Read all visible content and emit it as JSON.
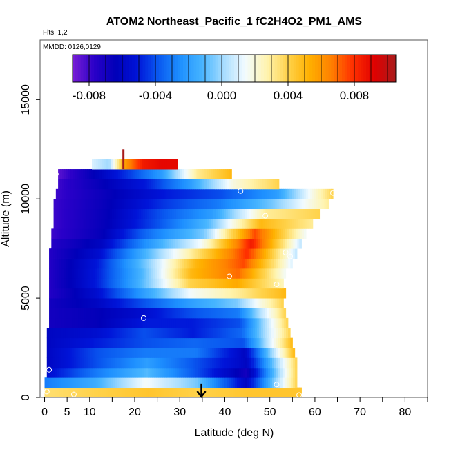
{
  "chart_data": {
    "type": "heatmap",
    "title": "ATOM2 Northeast_Pacific_1 fC2H4O2_PM1_AMS",
    "flights_note": "Flts: 1,2",
    "date_note": "MMDD: 0126,0129",
    "xlabel": "Latitude (deg N)",
    "ylabel": "Altitude (m)",
    "xlim": [
      -1,
      85
    ],
    "ylim": [
      0,
      18000
    ],
    "x_ticks": [
      0,
      5,
      10,
      20,
      30,
      40,
      50,
      60,
      70,
      80
    ],
    "y_ticks": [
      0,
      5000,
      10000,
      15000
    ],
    "y_tick_labels": [
      "0",
      "5000",
      "10000",
      "15000"
    ],
    "colorbar": {
      "range": [
        -0.009,
        0.0105
      ],
      "ticks": [
        -0.008,
        -0.004,
        0.0,
        0.004,
        0.008
      ],
      "tick_labels": [
        "-0.008",
        "-0.004",
        "0.000",
        "0.004",
        "0.008"
      ],
      "colors": [
        "#7a1fd6",
        "#2a00c8",
        "#0000b8",
        "#0014d8",
        "#0a5af0",
        "#1e90ff",
        "#46b4ff",
        "#a6dcff",
        "#f2fbff",
        "#fff4b0",
        "#ffd24a",
        "#ffb000",
        "#ff8000",
        "#ff3000",
        "#e00000",
        "#a81c1c"
      ]
    },
    "bands": [
      {
        "alt": 250,
        "lat_start": 0,
        "lat_end": 57,
        "values": [
          0.0035,
          0.004,
          0.0045,
          0.004,
          0.0045,
          0.0045
        ]
      },
      {
        "alt": 750,
        "lat_start": 0,
        "lat_end": 56,
        "values": [
          -0.003,
          -0.0015,
          0.0015,
          -0.0005,
          -0.006,
          0.004
        ]
      },
      {
        "alt": 1250,
        "lat_start": 0.5,
        "lat_end": 56,
        "values": [
          -0.0055,
          -0.003,
          -0.001,
          -0.004,
          -0.007,
          0.004
        ]
      },
      {
        "alt": 1750,
        "lat_start": 0.5,
        "lat_end": 56,
        "values": [
          -0.006,
          -0.004,
          -0.002,
          -0.004,
          -0.006,
          0.004
        ]
      },
      {
        "alt": 2250,
        "lat_start": 0.5,
        "lat_end": 55.5,
        "values": [
          -0.006,
          -0.004,
          -0.003,
          -0.003,
          -0.006,
          0.005
        ]
      },
      {
        "alt": 2750,
        "lat_start": 0.5,
        "lat_end": 55,
        "values": [
          -0.006,
          -0.005,
          -0.004,
          -0.0035,
          -0.004,
          0.005
        ]
      },
      {
        "alt": 3250,
        "lat_start": 0.5,
        "lat_end": 54.5,
        "values": [
          -0.006,
          -0.0055,
          -0.004,
          -0.005,
          -0.0035,
          0.004
        ]
      },
      {
        "alt": 3750,
        "lat_start": 1,
        "lat_end": 54,
        "values": [
          -0.007,
          -0.0065,
          -0.005,
          -0.005,
          -0.004,
          0.004
        ]
      },
      {
        "alt": 4250,
        "lat_start": 1,
        "lat_end": 53.5,
        "values": [
          -0.007,
          -0.0065,
          -0.0055,
          -0.004,
          -0.003,
          0.004
        ]
      },
      {
        "alt": 4750,
        "lat_start": 1,
        "lat_end": 53,
        "values": [
          -0.007,
          -0.006,
          -0.004,
          -0.002,
          -0.0005,
          0.004
        ]
      },
      {
        "alt": 5250,
        "lat_start": 1,
        "lat_end": 53.5,
        "values": [
          -0.0075,
          -0.0055,
          -0.002,
          0.0015,
          0.003,
          0.005
        ]
      },
      {
        "alt": 5750,
        "lat_start": 1,
        "lat_end": 53,
        "values": [
          -0.0075,
          -0.005,
          -0.001,
          0.004,
          0.0055,
          0.0025
        ]
      },
      {
        "alt": 6250,
        "lat_start": 1,
        "lat_end": 53.5,
        "values": [
          -0.0075,
          -0.005,
          -0.001,
          0.005,
          0.007,
          0.0015
        ]
      },
      {
        "alt": 6750,
        "lat_start": 1,
        "lat_end": 55,
        "values": [
          -0.0075,
          -0.005,
          -0.0005,
          0.005,
          0.0075,
          0.001
        ]
      },
      {
        "alt": 7250,
        "lat_start": 1,
        "lat_end": 56,
        "values": [
          -0.0075,
          -0.0055,
          -0.001,
          0.0035,
          0.008,
          0.0005
        ]
      },
      {
        "alt": 7750,
        "lat_start": 1.5,
        "lat_end": 57,
        "values": [
          -0.0075,
          -0.006,
          -0.002,
          0.0015,
          0.0085,
          0.0005
        ]
      },
      {
        "alt": 8250,
        "lat_start": 1.5,
        "lat_end": 58,
        "values": [
          -0.008,
          -0.0065,
          -0.003,
          -0.0005,
          0.0075,
          0.0015
        ]
      },
      {
        "alt": 8750,
        "lat_start": 2,
        "lat_end": 59.5,
        "values": [
          -0.008,
          -0.0065,
          -0.004,
          -0.001,
          0.005,
          0.003
        ]
      },
      {
        "alt": 9250,
        "lat_start": 2,
        "lat_end": 61,
        "values": [
          -0.008,
          -0.0065,
          -0.004,
          -0.002,
          0.003,
          0.004
        ]
      },
      {
        "alt": 9750,
        "lat_start": 2,
        "lat_end": 63,
        "values": [
          -0.008,
          -0.0065,
          -0.0045,
          -0.003,
          -0.0005,
          0.003
        ]
      },
      {
        "alt": 10250,
        "lat_start": 2.5,
        "lat_end": 64,
        "values": [
          -0.008,
          -0.0065,
          -0.005,
          -0.004,
          -0.002,
          0.004
        ]
      },
      {
        "alt": 10750,
        "lat_start": 3,
        "lat_end": 52,
        "values": [
          -0.008,
          -0.0065,
          -0.005,
          -0.002,
          0.002,
          0.004
        ]
      },
      {
        "alt": 11250,
        "lat_start": 3,
        "lat_end": 41.5,
        "values": [
          -0.0085,
          -0.0065,
          -0.0045,
          -0.002,
          0.003,
          0.005
        ]
      },
      {
        "alt": 11750,
        "lat_start": 10.5,
        "lat_end": 29.5,
        "values": [
          0.001,
          0.0,
          0.006,
          0.0085,
          0.009,
          0.009
        ]
      }
    ],
    "spike": {
      "lat": 17.5,
      "alt_min": 11500,
      "alt_max": 12500,
      "value": 0.0105
    },
    "observations": [
      {
        "lat": 1.0,
        "alt": 1400
      },
      {
        "lat": 2.5,
        "alt": 11250
      },
      {
        "lat": 6.5,
        "alt": 150
      },
      {
        "lat": 22,
        "alt": 4000
      },
      {
        "lat": 41,
        "alt": 6100
      },
      {
        "lat": 43.5,
        "alt": 10400
      },
      {
        "lat": 49,
        "alt": 9150
      },
      {
        "lat": 51.5,
        "alt": 5700
      },
      {
        "lat": 51.5,
        "alt": 650
      },
      {
        "lat": 53.5,
        "alt": 7300
      },
      {
        "lat": 54.5,
        "alt": 7100
      },
      {
        "lat": 56.5,
        "alt": 120
      },
      {
        "lat": 64,
        "alt": 10300
      },
      {
        "lat": 0.5,
        "alt": 300
      }
    ],
    "arrow_lat": 34.8,
    "grid": false
  }
}
